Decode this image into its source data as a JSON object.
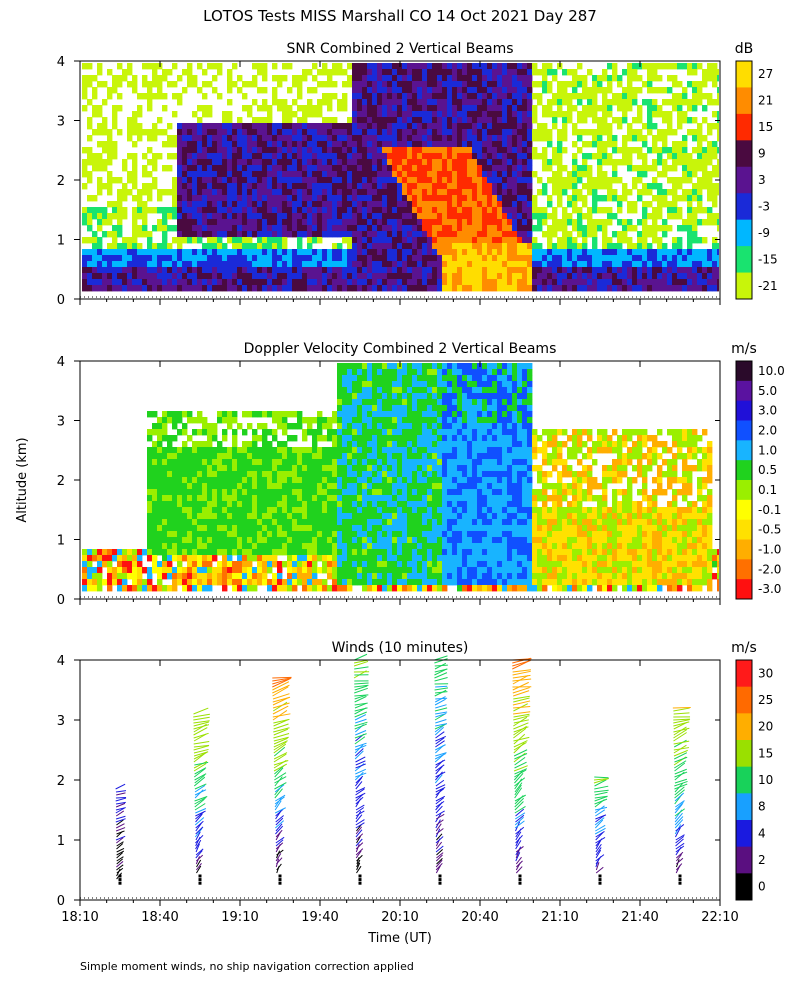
{
  "figure": {
    "title": "LOTOS Tests MISS Marshall CO  14 Oct 2021 Day 287",
    "footnote": "Simple moment winds, no ship navigation correction applied",
    "x_axis_label": "Time (UT)",
    "y_axis_label": "Altitude (km)"
  },
  "chart_data": [
    {
      "type": "heatmap",
      "title": "SNR Combined 2 Vertical Beams",
      "xlabel": "",
      "ylabel": "",
      "x_ticks": [
        "",
        "",
        "",
        "",
        "",
        "",
        "",
        "",
        ""
      ],
      "x_range_minutes_utc": [
        1090,
        1330
      ],
      "y_ticks": [
        "0",
        "1",
        "2",
        "3",
        "4"
      ],
      "ylim": [
        0,
        4
      ],
      "colorbar": {
        "unit": "dB",
        "labels": [
          "27",
          "21",
          "15",
          "9",
          "3",
          "-3",
          "-9",
          "-15",
          "-21"
        ],
        "colors": [
          "#ffdd00",
          "#ff8c00",
          "#ff2a00",
          "#4a0a40",
          "#5a1390",
          "#1a2ad8",
          "#00b7ff",
          "#19e36f",
          "#c8f50a"
        ]
      },
      "description_values": {
        "boundary_layer_snr_db": [
          -3,
          9
        ],
        "max_snr_db": 27,
        "strong_echo_time_range": [
          "19:55",
          "21:00"
        ]
      }
    },
    {
      "type": "heatmap",
      "title": "Doppler Velocity Combined 2 Vertical Beams",
      "xlabel": "",
      "ylabel": "",
      "x_ticks": [
        "",
        "",
        "",
        "",
        "",
        "",
        "",
        "",
        ""
      ],
      "x_range_minutes_utc": [
        1090,
        1330
      ],
      "y_ticks": [
        "0",
        "1",
        "2",
        "3",
        "4"
      ],
      "ylim": [
        0,
        4
      ],
      "colorbar": {
        "unit": "m/s",
        "labels": [
          "10.0",
          "5.0",
          "3.0",
          "2.0",
          "1.0",
          "0.5",
          "0.1",
          "-0.1",
          "-0.5",
          "-1.0",
          "-2.0",
          "-3.0"
        ],
        "colors": [
          "#2a0a2a",
          "#5a12a0",
          "#2010d8",
          "#1050ff",
          "#18b4ff",
          "#20d21e",
          "#9aef00",
          "#ffff00",
          "#ffe100",
          "#ffae00",
          "#ff7000",
          "#ff1010"
        ]
      }
    },
    {
      "type": "scatter",
      "title": "Winds (10 minutes)",
      "xlabel": "Time (UT)",
      "ylabel": "",
      "x_ticks": [
        "18:10",
        "18:40",
        "19:10",
        "19:40",
        "20:10",
        "20:40",
        "21:10",
        "21:40",
        "22:10"
      ],
      "x_range_minutes_utc": [
        1090,
        1330
      ],
      "y_ticks": [
        "0",
        "1",
        "2",
        "3",
        "4"
      ],
      "ylim": [
        0,
        4
      ],
      "colorbar": {
        "unit": "m/s",
        "labels": [
          "30",
          "25",
          "20",
          "15",
          "10",
          "8",
          "4",
          "2",
          "0"
        ],
        "colors": [
          "#ff1a1a",
          "#ff6a00",
          "#ffae00",
          "#9ae000",
          "#18d25a",
          "#18a0ff",
          "#1a1ae0",
          "#5a0f80",
          "#000000"
        ]
      },
      "profiles": [
        {
          "time": "18:25",
          "altitude_km": [
            0.2,
            1.9
          ],
          "speed_ms": [
            0,
            6
          ]
        },
        {
          "time": "18:55",
          "altitude_km": [
            0.3,
            3.1
          ],
          "speed_ms": [
            2,
            20
          ]
        },
        {
          "time": "19:25",
          "altitude_km": [
            0.3,
            3.7
          ],
          "speed_ms": [
            0,
            25
          ]
        },
        {
          "time": "19:55",
          "altitude_km": [
            0.3,
            4.0
          ],
          "speed_ms": [
            0,
            15
          ]
        },
        {
          "time": "20:25",
          "altitude_km": [
            0.3,
            4.0
          ],
          "speed_ms": [
            2,
            12
          ]
        },
        {
          "time": "20:55",
          "altitude_km": [
            0.3,
            4.0
          ],
          "speed_ms": [
            2,
            25
          ]
        },
        {
          "time": "21:25",
          "altitude_km": [
            0.3,
            2.1
          ],
          "speed_ms": [
            2,
            15
          ]
        },
        {
          "time": "21:55",
          "altitude_km": [
            0.3,
            3.2
          ],
          "speed_ms": [
            2,
            20
          ]
        }
      ]
    }
  ]
}
